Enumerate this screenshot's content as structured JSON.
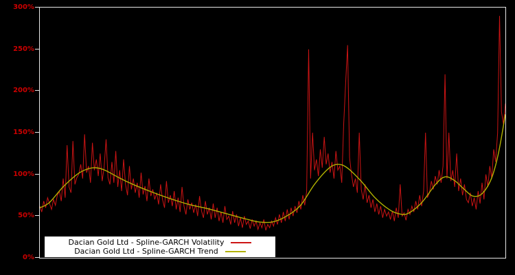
{
  "colors": {
    "background": "#000000",
    "frame": "#e8e8e8",
    "axis_label": "#cc0000",
    "volatility": "#cc1414",
    "trend": "#b1b100",
    "legend_bg": "#ffffff",
    "legend_text": "#000000"
  },
  "legend": {
    "items": [
      {
        "label": "Dacian Gold Ltd - Spline-GARCH Volatility",
        "color": "#cc1414"
      },
      {
        "label": "Dacian Gold Ltd - Spline-GARCH Trend",
        "color": "#b1b100"
      }
    ]
  },
  "chart_data": {
    "type": "line",
    "title": "",
    "xlabel": "",
    "ylabel": "",
    "ylim": [
      0,
      300
    ],
    "yticks": [
      0,
      50,
      100,
      150,
      200,
      250,
      300
    ],
    "ytick_labels": [
      "0%",
      "50%",
      "100%",
      "150%",
      "200%",
      "250%",
      "300%"
    ],
    "x_range": [
      0,
      1
    ],
    "grid": false,
    "legend_position": "bottom-left",
    "series": [
      {
        "name": "Dacian Gold Ltd - Spline-GARCH Volatility",
        "color": "#cc1414",
        "style": "jagged",
        "values": [
          62,
          55,
          68,
          60,
          72,
          65,
          58,
          70,
          63,
          75,
          80,
          68,
          95,
          72,
          135,
          85,
          78,
          140,
          88,
          96,
          100,
          112,
          95,
          148,
          102,
          110,
          90,
          138,
          105,
          118,
          98,
          125,
          92,
          108,
          142,
          96,
          88,
          115,
          90,
          128,
          85,
          105,
          80,
          118,
          88,
          75,
          110,
          82,
          95,
          78,
          90,
          72,
          102,
          76,
          86,
          68,
          95,
          74,
          82,
          70,
          78,
          64,
          88,
          70,
          60,
          92,
          66,
          75,
          62,
          80,
          58,
          72,
          55,
          85,
          62,
          52,
          70,
          58,
          66,
          54,
          64,
          50,
          74,
          56,
          48,
          68,
          52,
          60,
          46,
          65,
          48,
          60,
          44,
          55,
          42,
          62,
          46,
          50,
          40,
          56,
          42,
          52,
          38,
          48,
          36,
          50,
          40,
          44,
          35,
          46,
          38,
          44,
          34,
          42,
          36,
          46,
          33,
          40,
          36,
          44,
          38,
          48,
          40,
          52,
          42,
          55,
          44,
          58,
          46,
          60,
          50,
          62,
          54,
          68,
          58,
          75,
          63,
          80,
          250,
          95,
          150,
          105,
          118,
          98,
          130,
          108,
          145,
          112,
          125,
          102,
          115,
          95,
          128,
          105,
          110,
          90,
          160,
          210,
          255,
          120,
          100,
          85,
          95,
          78,
          150,
          82,
          70,
          88,
          66,
          75,
          60,
          70,
          55,
          65,
          52,
          62,
          48,
          58,
          50,
          55,
          46,
          56,
          44,
          60,
          48,
          88,
          50,
          54,
          45,
          58,
          52,
          62,
          55,
          68,
          58,
          75,
          62,
          80,
          150,
          72,
          78,
          92,
          82,
          98,
          88,
          105,
          90,
          110,
          220,
          95,
          150,
          92,
          105,
          85,
          125,
          80,
          95,
          75,
          88,
          70,
          66,
          78,
          62,
          72,
          58,
          80,
          65,
          90,
          70,
          100,
          85,
          110,
          95,
          130,
          115,
          150,
          290,
          175,
          160,
          185
        ]
      },
      {
        "name": "Dacian Gold Ltd - Spline-GARCH Trend",
        "color": "#b1b100",
        "style": "smooth",
        "points": [
          [
            0.0,
            60
          ],
          [
            0.02,
            66
          ],
          [
            0.05,
            85
          ],
          [
            0.08,
            100
          ],
          [
            0.1,
            106
          ],
          [
            0.12,
            108
          ],
          [
            0.14,
            105
          ],
          [
            0.17,
            96
          ],
          [
            0.2,
            88
          ],
          [
            0.24,
            79
          ],
          [
            0.28,
            71
          ],
          [
            0.32,
            64
          ],
          [
            0.36,
            59
          ],
          [
            0.4,
            53
          ],
          [
            0.44,
            47
          ],
          [
            0.47,
            43
          ],
          [
            0.5,
            43
          ],
          [
            0.53,
            50
          ],
          [
            0.56,
            63
          ],
          [
            0.59,
            88
          ],
          [
            0.62,
            107
          ],
          [
            0.64,
            112
          ],
          [
            0.66,
            108
          ],
          [
            0.69,
            92
          ],
          [
            0.72,
            72
          ],
          [
            0.75,
            58
          ],
          [
            0.77,
            53
          ],
          [
            0.79,
            53
          ],
          [
            0.82,
            66
          ],
          [
            0.85,
            88
          ],
          [
            0.87,
            97
          ],
          [
            0.89,
            93
          ],
          [
            0.91,
            83
          ],
          [
            0.93,
            74
          ],
          [
            0.95,
            77
          ],
          [
            0.97,
            95
          ],
          [
            0.985,
            125
          ],
          [
            1.0,
            172
          ]
        ]
      }
    ]
  }
}
